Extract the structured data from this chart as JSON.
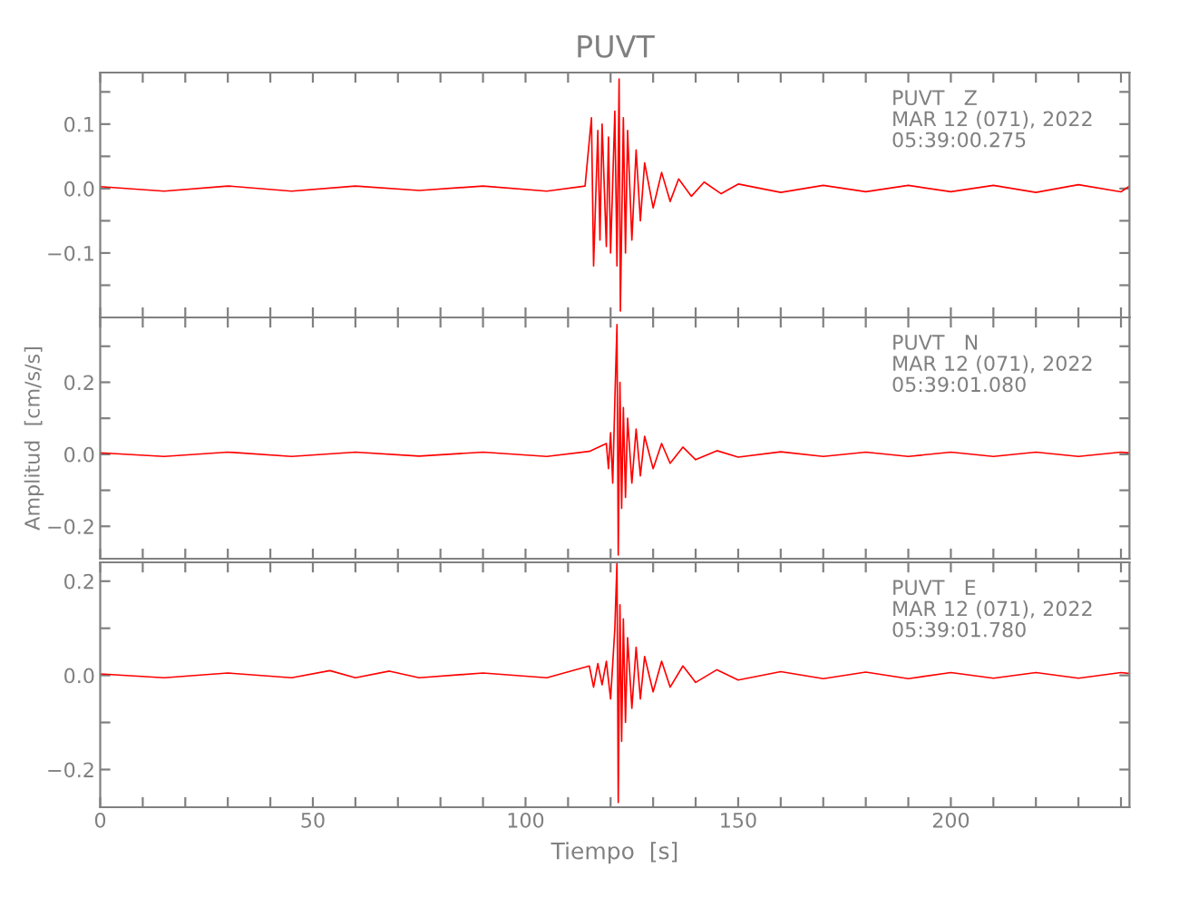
{
  "chart_data": [
    {
      "type": "line",
      "title": "PUVT",
      "tick_labels": "y",
      "x": [
        0,
        15,
        30,
        45,
        60,
        75,
        90,
        105,
        114,
        115.5,
        116,
        117,
        117.5,
        118,
        119,
        119.5,
        120,
        121,
        121.5,
        122,
        122.3,
        123,
        123.5,
        124,
        125,
        126,
        127,
        128,
        130,
        132,
        134,
        136,
        139,
        142,
        146,
        150,
        160,
        170,
        180,
        190,
        200,
        210,
        220,
        230,
        240,
        242
      ],
      "series": [
        {
          "color": "#ff0000",
          "values": [
            0.003,
            -0.004,
            0.004,
            -0.004,
            0.004,
            -0.003,
            0.004,
            -0.004,
            0.004,
            0.11,
            -0.12,
            0.09,
            -0.08,
            0.1,
            -0.09,
            0.08,
            -0.1,
            0.12,
            -0.12,
            0.17,
            -0.19,
            0.11,
            -0.1,
            0.09,
            -0.08,
            0.06,
            -0.05,
            0.04,
            -0.03,
            0.025,
            -0.02,
            0.015,
            -0.012,
            0.01,
            -0.008,
            0.007,
            -0.006,
            0.005,
            -0.005,
            0.005,
            -0.005,
            0.005,
            -0.006,
            0.006,
            -0.005,
            0.004
          ]
        }
      ],
      "xlim": [
        0,
        242
      ],
      "ylim": [
        -0.2,
        0.18
      ],
      "xticks": [
        {
          "value": 0,
          "label": null
        },
        {
          "value": 10,
          "label": null
        },
        {
          "value": 20,
          "label": null
        },
        {
          "value": 30,
          "label": null
        },
        {
          "value": 40,
          "label": null
        },
        {
          "value": 50,
          "label": null
        },
        {
          "value": 60,
          "label": null
        },
        {
          "value": 70,
          "label": null
        },
        {
          "value": 80,
          "label": null
        },
        {
          "value": 90,
          "label": null
        },
        {
          "value": 100,
          "label": null
        },
        {
          "value": 110,
          "label": null
        },
        {
          "value": 120,
          "label": null
        },
        {
          "value": 130,
          "label": null
        },
        {
          "value": 140,
          "label": null
        },
        {
          "value": 150,
          "label": null
        },
        {
          "value": 160,
          "label": null
        },
        {
          "value": 170,
          "label": null
        },
        {
          "value": 180,
          "label": null
        },
        {
          "value": 190,
          "label": null
        },
        {
          "value": 200,
          "label": null
        },
        {
          "value": 210,
          "label": null
        },
        {
          "value": 220,
          "label": null
        },
        {
          "value": 230,
          "label": null
        },
        {
          "value": 240,
          "label": null
        }
      ],
      "yticks": [
        {
          "value": -0.15,
          "label": null
        },
        {
          "value": -0.1,
          "label": "−0.1"
        },
        {
          "value": -0.05,
          "label": null
        },
        {
          "value": 0,
          "label": "0.0"
        },
        {
          "value": 0.05,
          "label": null
        },
        {
          "value": 0.1,
          "label": "0.1"
        },
        {
          "value": 0.15,
          "label": null
        }
      ],
      "annotations": [
        "PUVT   Z\nMAR 12 (071), 2022\n05:39:00.275"
      ]
    },
    {
      "type": "line",
      "ylabel": "Amplitud  [cm/s/s]",
      "tick_labels": "y",
      "x": [
        0,
        15,
        30,
        45,
        60,
        75,
        90,
        105,
        115,
        119,
        119.5,
        120,
        120.5,
        121,
        121.5,
        121.8,
        122.2,
        122.6,
        123,
        123.5,
        124,
        125,
        126,
        127,
        128,
        130,
        132,
        134,
        137,
        140,
        145,
        150,
        160,
        170,
        180,
        190,
        200,
        210,
        220,
        230,
        240,
        242
      ],
      "series": [
        {
          "color": "#ff0000",
          "values": [
            0.004,
            -0.006,
            0.006,
            -0.006,
            0.006,
            -0.005,
            0.006,
            -0.006,
            0.008,
            0.03,
            -0.04,
            0.06,
            -0.08,
            0.15,
            0.36,
            -0.28,
            0.2,
            -0.15,
            0.13,
            -0.12,
            0.1,
            -0.08,
            0.07,
            -0.06,
            0.05,
            -0.04,
            0.03,
            -0.025,
            0.02,
            -0.015,
            0.01,
            -0.008,
            0.007,
            -0.006,
            0.006,
            -0.006,
            0.006,
            -0.006,
            0.006,
            -0.006,
            0.006,
            0.004
          ]
        }
      ],
      "xlim": [
        0,
        242
      ],
      "ylim": [
        -0.29,
        0.38
      ],
      "xticks": [
        {
          "value": 0,
          "label": null
        },
        {
          "value": 10,
          "label": null
        },
        {
          "value": 20,
          "label": null
        },
        {
          "value": 30,
          "label": null
        },
        {
          "value": 40,
          "label": null
        },
        {
          "value": 50,
          "label": null
        },
        {
          "value": 60,
          "label": null
        },
        {
          "value": 70,
          "label": null
        },
        {
          "value": 80,
          "label": null
        },
        {
          "value": 90,
          "label": null
        },
        {
          "value": 100,
          "label": null
        },
        {
          "value": 110,
          "label": null
        },
        {
          "value": 120,
          "label": null
        },
        {
          "value": 130,
          "label": null
        },
        {
          "value": 140,
          "label": null
        },
        {
          "value": 150,
          "label": null
        },
        {
          "value": 160,
          "label": null
        },
        {
          "value": 170,
          "label": null
        },
        {
          "value": 180,
          "label": null
        },
        {
          "value": 190,
          "label": null
        },
        {
          "value": 200,
          "label": null
        },
        {
          "value": 210,
          "label": null
        },
        {
          "value": 220,
          "label": null
        },
        {
          "value": 230,
          "label": null
        },
        {
          "value": 240,
          "label": null
        }
      ],
      "yticks": [
        {
          "value": -0.2,
          "label": "−0.2"
        },
        {
          "value": -0.1,
          "label": null
        },
        {
          "value": 0,
          "label": "0.0"
        },
        {
          "value": 0.1,
          "label": null
        },
        {
          "value": 0.2,
          "label": "0.2"
        },
        {
          "value": 0.3,
          "label": null
        }
      ],
      "annotations": [
        "PUVT   N\nMAR 12 (071), 2022\n05:39:01.080"
      ]
    },
    {
      "type": "line",
      "xlabel": "Tiempo  [s]",
      "x": [
        0,
        15,
        30,
        45,
        54,
        60,
        68,
        75,
        90,
        105,
        115,
        116,
        117,
        118,
        119,
        120,
        121,
        121.5,
        121.8,
        122.2,
        122.6,
        123,
        123.5,
        124,
        125,
        126,
        127,
        128,
        130,
        132,
        134,
        137,
        140,
        145,
        150,
        160,
        170,
        180,
        190,
        200,
        210,
        220,
        230,
        240,
        242
      ],
      "series": [
        {
          "color": "#ff0000",
          "values": [
            0.003,
            -0.005,
            0.005,
            -0.005,
            0.01,
            -0.005,
            0.009,
            -0.005,
            0.005,
            -0.005,
            0.02,
            -0.025,
            0.025,
            -0.02,
            0.03,
            -0.05,
            0.1,
            0.24,
            -0.27,
            0.15,
            -0.14,
            0.12,
            -0.1,
            0.08,
            -0.07,
            0.06,
            -0.05,
            0.04,
            -0.035,
            0.03,
            -0.025,
            0.02,
            -0.015,
            0.012,
            -0.01,
            0.008,
            -0.007,
            0.007,
            -0.007,
            0.006,
            -0.006,
            0.006,
            -0.006,
            0.006,
            0.004
          ]
        }
      ],
      "xlim": [
        0,
        242
      ],
      "ylim": [
        -0.28,
        0.24
      ],
      "xticks": [
        0,
        {
          "value": 10,
          "label": null
        },
        {
          "value": 20,
          "label": null
        },
        {
          "value": 30,
          "label": null
        },
        {
          "value": 40,
          "label": null
        },
        50,
        {
          "value": 60,
          "label": null
        },
        {
          "value": 70,
          "label": null
        },
        {
          "value": 80,
          "label": null
        },
        {
          "value": 90,
          "label": null
        },
        100,
        {
          "value": 110,
          "label": null
        },
        {
          "value": 120,
          "label": null
        },
        {
          "value": 130,
          "label": null
        },
        {
          "value": 140,
          "label": null
        },
        150,
        {
          "value": 160,
          "label": null
        },
        {
          "value": 170,
          "label": null
        },
        {
          "value": 180,
          "label": null
        },
        {
          "value": 190,
          "label": null
        },
        200,
        {
          "value": 210,
          "label": null
        },
        {
          "value": 220,
          "label": null
        },
        {
          "value": 230,
          "label": null
        },
        {
          "value": 240,
          "label": null
        }
      ],
      "yticks": [
        {
          "value": -0.2,
          "label": "−0.2"
        },
        {
          "value": -0.1,
          "label": null
        },
        {
          "value": 0,
          "label": "0.0"
        },
        {
          "value": 0.1,
          "label": null
        },
        {
          "value": 0.2,
          "label": "0.2"
        }
      ],
      "annotations": [
        "PUVT   E\nMAR 12 (071), 2022\n05:39:01.780"
      ]
    }
  ]
}
